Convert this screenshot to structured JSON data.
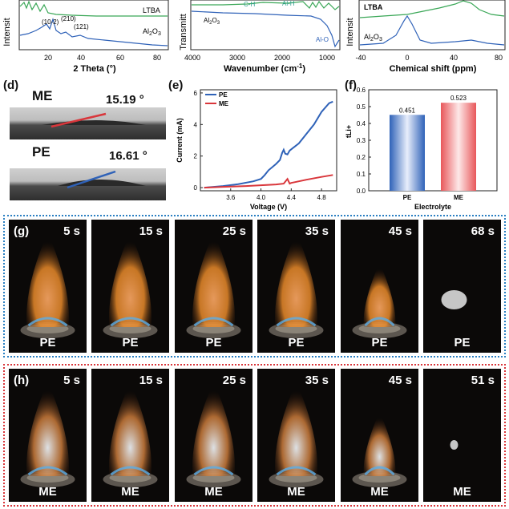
{
  "top_row": {
    "left": {
      "ylabel": "Intensit",
      "xlabel": "2 Theta (°)",
      "xticks": [
        "20",
        "40",
        "60",
        "80"
      ],
      "series": [
        {
          "name": "LTBA",
          "color": "#3aa757"
        },
        {
          "name": "Al2O3",
          "color": "#2f62b8"
        }
      ],
      "peaks": [
        "(10-2)",
        "(210)",
        "(121)"
      ]
    },
    "middle": {
      "ylabel": "Transmitt",
      "xlabel": "Wavenumber (cm-1)",
      "xticks": [
        "4000",
        "3000",
        "2000",
        "1000"
      ],
      "series": [
        {
          "name": "Al2O3",
          "color": "#2f62b8"
        },
        {
          "name": "LTBA",
          "color": "#3aa757"
        }
      ],
      "annotations": [
        "C-H",
        "Al-H",
        "Al-O"
      ]
    },
    "right": {
      "ylabel": "Intensit",
      "xlabel": "Chemical shift (ppm)",
      "xticks": [
        "-40",
        "0",
        "40",
        "80"
      ],
      "series": [
        {
          "name": "LTBA",
          "color": "#3aa757"
        },
        {
          "name": "Al2O3",
          "color": "#2f62b8"
        }
      ]
    }
  },
  "panel_d": {
    "letter": "(d)",
    "samples": [
      {
        "name": "ME",
        "angle": "15.19 °",
        "line_color": "#d9363b"
      },
      {
        "name": "PE",
        "angle": "16.61 °",
        "line_color": "#2f62b8"
      }
    ]
  },
  "chart_data": [
    {
      "panel": "(e)",
      "type": "line",
      "xlabel": "Voltage (V)",
      "ylabel": "Current (mA)",
      "xlim": [
        3.2,
        5.0
      ],
      "ylim": [
        -0.2,
        6.2
      ],
      "xticks": [
        "3.6",
        "4.0",
        "4.4",
        "4.8"
      ],
      "yticks": [
        "0",
        "2",
        "4",
        "6"
      ],
      "legend": "top-left",
      "series": [
        {
          "name": "PE",
          "color": "#2f62b8",
          "x": [
            3.25,
            3.5,
            3.7,
            3.9,
            4.0,
            4.05,
            4.1,
            4.15,
            4.2,
            4.25,
            4.28,
            4.3,
            4.32,
            4.35,
            4.38,
            4.42,
            4.5,
            4.6,
            4.7,
            4.8,
            4.9,
            4.95
          ],
          "y": [
            0.0,
            0.1,
            0.22,
            0.4,
            0.55,
            0.8,
            1.1,
            1.3,
            1.5,
            1.75,
            2.2,
            2.4,
            2.15,
            2.1,
            2.35,
            2.5,
            2.8,
            3.4,
            4.0,
            4.8,
            5.35,
            5.45
          ]
        },
        {
          "name": "ME",
          "color": "#d9363b",
          "x": [
            3.25,
            3.5,
            3.8,
            4.0,
            4.2,
            4.3,
            4.35,
            4.38,
            4.4,
            4.45,
            4.6,
            4.8,
            4.95
          ],
          "y": [
            0.0,
            0.05,
            0.1,
            0.15,
            0.2,
            0.25,
            0.55,
            0.25,
            0.3,
            0.35,
            0.5,
            0.68,
            0.8
          ]
        }
      ]
    },
    {
      "panel": "(f)",
      "type": "bar",
      "xlabel": "Electrolyte",
      "ylabel": "tLi+",
      "categories": [
        "PE",
        "ME"
      ],
      "values": [
        0.451,
        0.523
      ],
      "labels": [
        "0.451",
        "0.523"
      ],
      "colors": [
        "#2f62b8",
        "#e8575a"
      ],
      "ylim": [
        0.0,
        0.6
      ],
      "yticks": [
        "0.0",
        "0.1",
        "0.2",
        "0.3",
        "0.4",
        "0.5",
        "0.6"
      ]
    }
  ],
  "panel_g": {
    "letter": "(g)",
    "frame_color": "#2a7fc2",
    "times": [
      "5 s",
      "15 s",
      "25 s",
      "35 s",
      "45 s",
      "68 s"
    ],
    "label": "PE"
  },
  "panel_h": {
    "letter": "(h)",
    "frame_color": "#d9363b",
    "times": [
      "5 s",
      "15 s",
      "25 s",
      "35 s",
      "45 s",
      "51 s"
    ],
    "label": "ME"
  }
}
